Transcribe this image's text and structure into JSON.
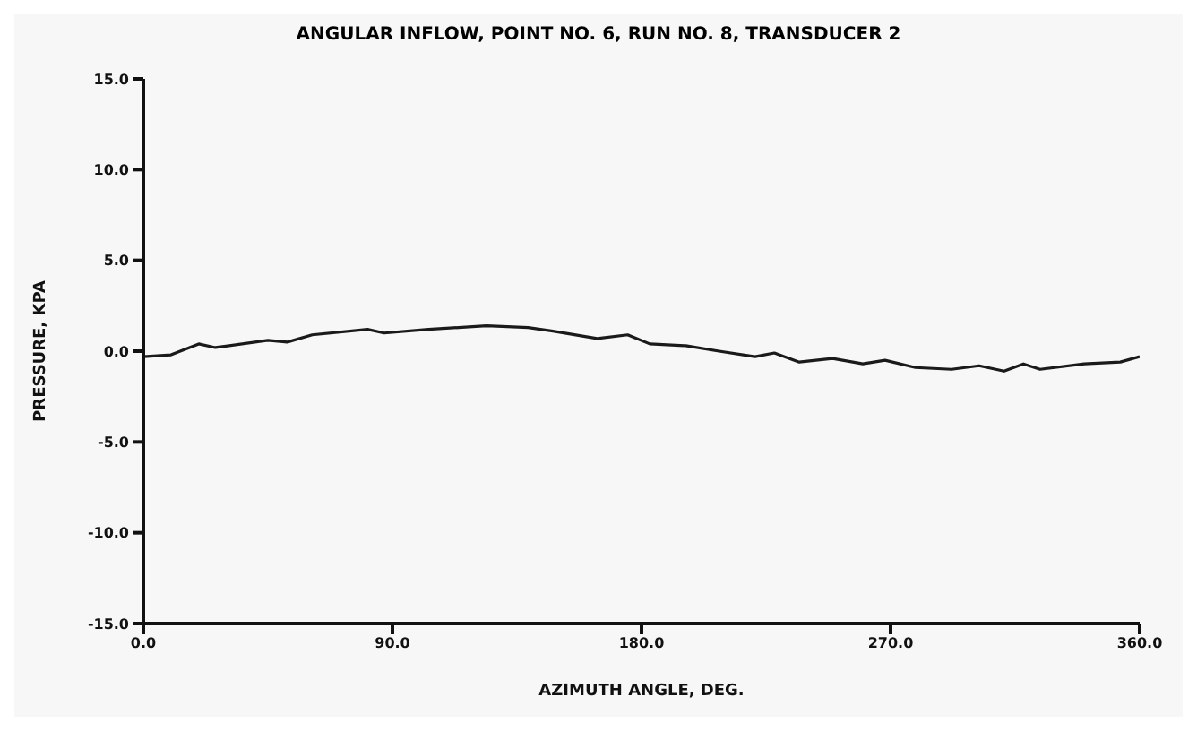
{
  "chart_data": {
    "type": "line",
    "title": "ANGULAR INFLOW,  POINT NO.  6,  RUN NO.  8,  TRANSDUCER  2",
    "xlabel": "AZIMUTH ANGLE, DEG.",
    "ylabel": "PRESSURE, KPA",
    "x": [
      0,
      10,
      20,
      26,
      45,
      52,
      61,
      81,
      87,
      103,
      124,
      139,
      148,
      164,
      175,
      183,
      196,
      208,
      221,
      228,
      237,
      249,
      260,
      268,
      279,
      292,
      302,
      311,
      318,
      324,
      340,
      353,
      360
    ],
    "series": [
      {
        "color": "#1a1a1a",
        "values": [
          -0.3,
          -0.2,
          0.4,
          0.2,
          0.6,
          0.5,
          0.9,
          1.2,
          1.0,
          1.2,
          1.4,
          1.3,
          1.1,
          0.7,
          0.9,
          0.4,
          0.3,
          0.0,
          -0.3,
          -0.1,
          -0.6,
          -0.4,
          -0.7,
          -0.5,
          -0.9,
          -1.0,
          -0.8,
          -1.1,
          -0.7,
          -1.0,
          -0.7,
          -0.6,
          -0.3
        ]
      }
    ],
    "xlim": [
      0,
      360
    ],
    "xticks": [
      {
        "value": 0,
        "label": "0.0"
      },
      {
        "value": 90,
        "label": "90.0"
      },
      {
        "value": 180,
        "label": "180.0"
      },
      {
        "value": 270,
        "label": "270.0"
      },
      {
        "value": 360,
        "label": "360.0"
      }
    ],
    "ylim": [
      -15,
      15
    ],
    "yticks": [
      {
        "value": -15,
        "label": "-15.0"
      },
      {
        "value": -10,
        "label": "-10.0"
      },
      {
        "value": -5,
        "label": "-5.0"
      },
      {
        "value": 0,
        "label": "0.0"
      },
      {
        "value": 5,
        "label": "5.0"
      },
      {
        "value": 10,
        "label": "10.0"
      },
      {
        "value": 15,
        "label": "15.0"
      }
    ],
    "grid": false,
    "legend": false,
    "marker": "none",
    "line_style": "solid"
  }
}
